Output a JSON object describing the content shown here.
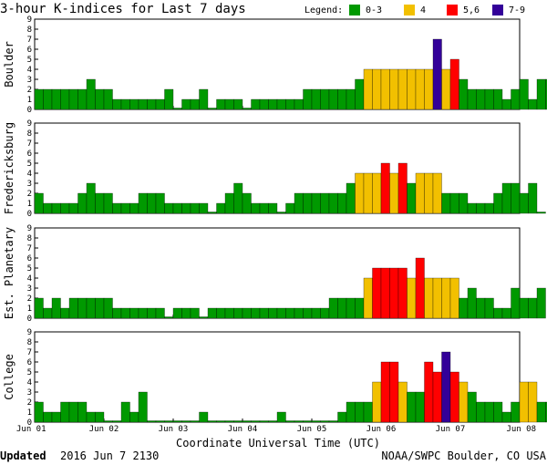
{
  "header": {
    "title": "3-hour K-indices for Last 7 days",
    "legend_label": "Legend:",
    "legend": [
      {
        "label": "0-3",
        "color": "#009900"
      },
      {
        "label": "4",
        "color": "#f2c000"
      },
      {
        "label": "5,6",
        "color": "#ff0000"
      },
      {
        "label": "7-9",
        "color": "#330099"
      }
    ]
  },
  "footer": {
    "updated_label": "Updated",
    "updated_value": "2016 Jun  7 2130",
    "credit": "NOAA/SWPC Boulder, CO USA"
  },
  "chart_data": {
    "type": "bar",
    "xlabel": "Coordinate Universal Time (UTC)",
    "x_ticks": [
      "Jun 01",
      "Jun 02",
      "Jun 03",
      "Jun 04",
      "Jun 05",
      "Jun 06",
      "Jun 07",
      "Jun 08"
    ],
    "y_ticks": [
      "0",
      "1",
      "2",
      "3",
      "4",
      "5",
      "6",
      "7",
      "8",
      "9"
    ],
    "ylim": [
      0,
      9
    ],
    "bins_per_day": 8,
    "grid": false,
    "series": [
      {
        "name": "Boulder",
        "values": [
          2,
          2,
          2,
          2,
          2,
          2,
          3,
          2,
          2,
          1,
          1,
          1,
          1,
          1,
          1,
          2,
          0,
          1,
          1,
          2,
          0,
          1,
          1,
          1,
          0,
          1,
          1,
          1,
          1,
          1,
          1,
          2,
          2,
          2,
          2,
          2,
          2,
          3,
          4,
          4,
          4,
          4,
          4,
          4,
          4,
          4,
          7,
          4,
          5,
          3,
          2,
          2,
          2,
          2,
          1,
          2,
          3,
          1,
          3,
          3,
          0
        ]
      },
      {
        "name": "Fredericksburg",
        "values": [
          2,
          1,
          1,
          1,
          1,
          2,
          3,
          2,
          2,
          1,
          1,
          1,
          2,
          2,
          2,
          1,
          1,
          1,
          1,
          1,
          0,
          1,
          2,
          3,
          2,
          1,
          1,
          1,
          0,
          1,
          2,
          2,
          2,
          2,
          2,
          2,
          3,
          4,
          4,
          4,
          5,
          4,
          5,
          3,
          4,
          4,
          4,
          2,
          2,
          2,
          1,
          1,
          1,
          2,
          3,
          3,
          2,
          3,
          0
        ]
      },
      {
        "name": "Est. Planetary",
        "values": [
          2,
          1,
          2,
          1,
          2,
          2,
          2,
          2,
          2,
          1,
          1,
          1,
          1,
          1,
          1,
          0,
          1,
          1,
          1,
          0,
          1,
          1,
          1,
          1,
          1,
          1,
          1,
          1,
          1,
          1,
          1,
          1,
          1,
          1,
          2,
          2,
          2,
          2,
          4,
          5,
          5,
          5,
          5,
          4,
          6,
          4,
          4,
          4,
          4,
          2,
          3,
          2,
          2,
          1,
          1,
          3,
          2,
          2,
          3
        ]
      },
      {
        "name": "College",
        "values": [
          2,
          1,
          1,
          2,
          2,
          2,
          1,
          1,
          0,
          0,
          2,
          1,
          3,
          0,
          0,
          0,
          0,
          0,
          0,
          1,
          0,
          0,
          0,
          0,
          0,
          0,
          0,
          0,
          1,
          0,
          0,
          0,
          0,
          0,
          0,
          1,
          2,
          2,
          2,
          4,
          6,
          6,
          4,
          3,
          3,
          6,
          5,
          7,
          5,
          4,
          3,
          2,
          2,
          2,
          1,
          2,
          4,
          4,
          2,
          2,
          0
        ]
      }
    ]
  }
}
